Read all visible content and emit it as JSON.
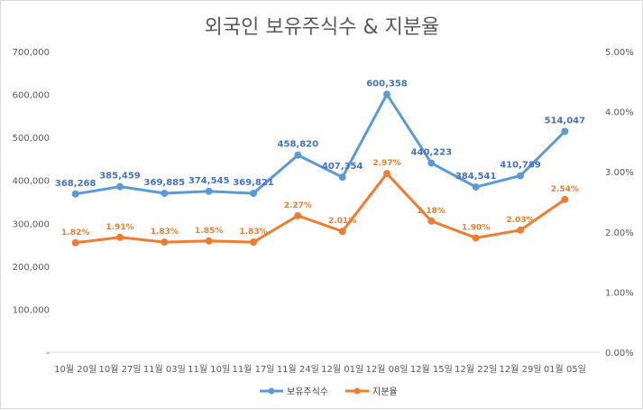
{
  "chart_data": {
    "type": "line",
    "title": "외국인 보유주식수 & 지분율",
    "categories": [
      "10월 20일",
      "10월 27일",
      "11월 03일",
      "11월 10일",
      "11월 17일",
      "11월 24일",
      "12월 01일",
      "12월 08일",
      "12월 15일",
      "12월 22일",
      "12월 29일",
      "01월 05일"
    ],
    "y_left": {
      "min": 0,
      "max": 700000,
      "ticks": [
        0,
        100000,
        200000,
        300000,
        400000,
        500000,
        600000,
        700000
      ],
      "tick_labels": [
        "-",
        "100,000",
        "200,000",
        "300,000",
        "400,000",
        "500,000",
        "600,000",
        "700,000"
      ]
    },
    "y_right": {
      "min": 0,
      "max": 5.0,
      "ticks": [
        0,
        1,
        2,
        3,
        4,
        5
      ],
      "tick_labels": [
        "0.00%",
        "1.00%",
        "2.00%",
        "3.00%",
        "4.00%",
        "5.00%"
      ]
    },
    "series": [
      {
        "name": "보유주식수",
        "axis": "left",
        "color": "#5B9BD5",
        "label_color": "#4472C4",
        "values": [
          368268,
          385459,
          369885,
          374545,
          369821,
          458820,
          407354,
          600358,
          440223,
          384541,
          410789,
          514047
        ],
        "labels": [
          "368,268",
          "385,459",
          "369,885",
          "374,545",
          "369,821",
          "458,820",
          "407,354",
          "600,358",
          "440,223",
          "384,541",
          "410,789",
          "514,047"
        ]
      },
      {
        "name": "지분율",
        "axis": "right",
        "color": "#ED7D31",
        "label_color": "#ED7D31",
        "values": [
          1.82,
          1.91,
          1.83,
          1.85,
          1.83,
          2.27,
          2.01,
          2.97,
          2.18,
          1.9,
          2.03,
          2.54
        ],
        "labels": [
          "1.82%",
          "1.91%",
          "1.83%",
          "1.85%",
          "1.83%",
          "2.27%",
          "2.01%",
          "2.97%",
          "2.18%",
          "1.90%",
          "2.03%",
          "2.54%"
        ]
      }
    ],
    "grid": false,
    "legend_position": "bottom"
  }
}
